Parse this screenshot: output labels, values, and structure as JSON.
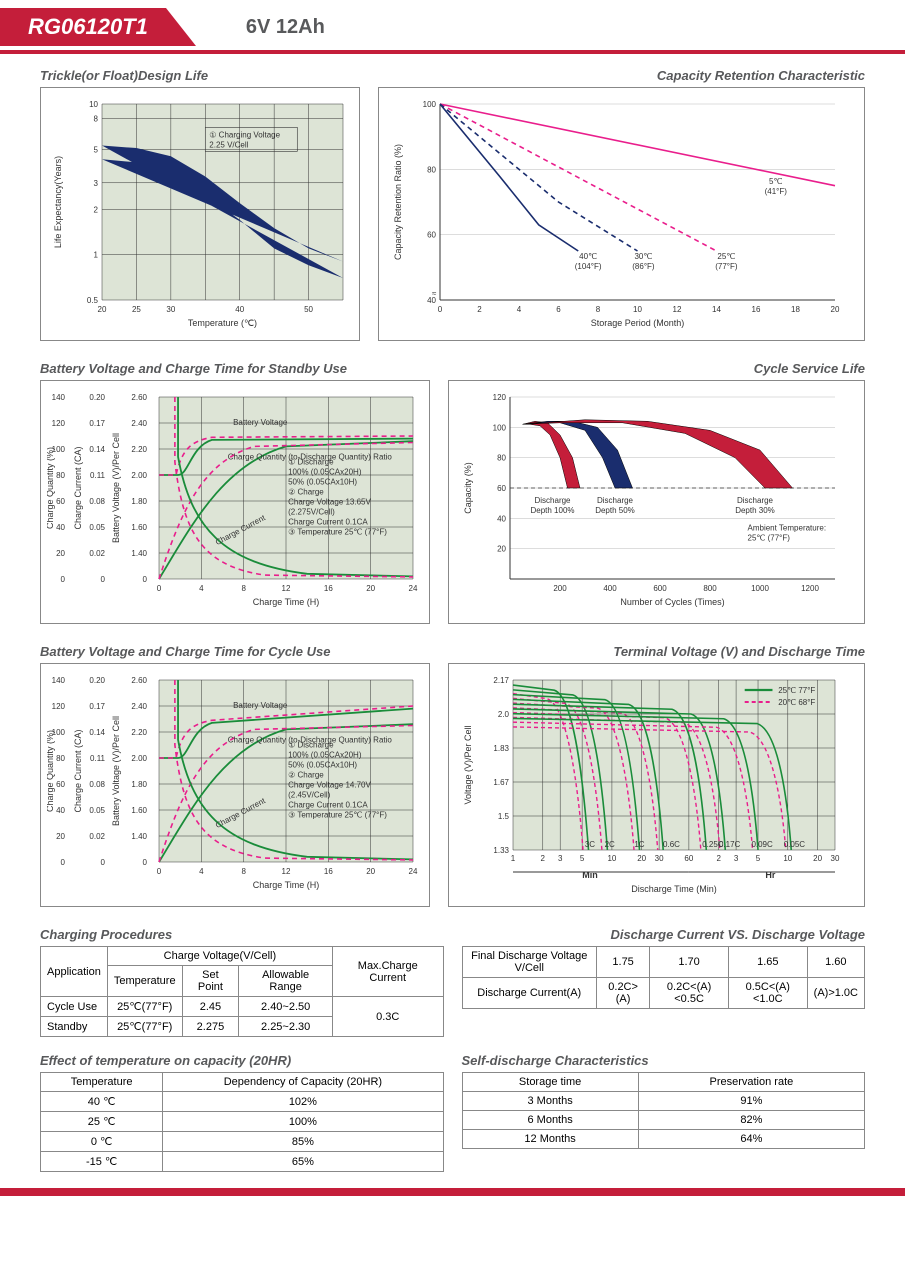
{
  "header": {
    "model": "RG06120T1",
    "spec": "6V  12Ah"
  },
  "chart_trickle": {
    "title": "Trickle(or Float)Design Life",
    "xlabel": "Temperature (℃)",
    "ylabel": "Life Expectancy(Years)",
    "xticks": [
      20,
      25,
      30,
      40,
      50
    ],
    "yticks_text": [
      "0.5",
      "1",
      "2",
      "3",
      "5",
      "8",
      "10"
    ],
    "legend": "① Charging Voltage 2.25 V/Cell",
    "band_color": "#1a2d6e",
    "bg": "#dde4d6",
    "band_upper": [
      [
        20,
        5.3
      ],
      [
        25,
        5.1
      ],
      [
        30,
        4.5
      ],
      [
        35,
        3.3
      ],
      [
        40,
        2.2
      ],
      [
        45,
        1.5
      ],
      [
        50,
        1.1
      ],
      [
        55,
        0.9
      ]
    ],
    "band_lower": [
      [
        20,
        4.3
      ],
      [
        25,
        4.1
      ],
      [
        30,
        3.5
      ],
      [
        35,
        2.5
      ],
      [
        40,
        1.7
      ],
      [
        45,
        1.1
      ],
      [
        50,
        0.85
      ],
      [
        55,
        0.7
      ]
    ]
  },
  "chart_retention": {
    "title": "Capacity Retention Characteristic",
    "xlabel": "Storage Period (Month)",
    "ylabel": "Capacity Retention Ratio (%)",
    "xticks": [
      0,
      2,
      4,
      6,
      8,
      10,
      12,
      14,
      16,
      18,
      20
    ],
    "yticks": [
      40,
      60,
      80,
      100
    ],
    "series": [
      {
        "label": "5℃ (41°F)",
        "label_xy": [
          17,
          78
        ],
        "color": "#e91e8c",
        "dash": false,
        "pts": [
          [
            0,
            100
          ],
          [
            20,
            75
          ]
        ]
      },
      {
        "label": "25℃ (77°F)",
        "label_xy": [
          14.5,
          55
        ],
        "color": "#e91e8c",
        "dash": true,
        "pts": [
          [
            0,
            100
          ],
          [
            14,
            55
          ]
        ]
      },
      {
        "label": "30℃ (86°F)",
        "label_xy": [
          10.3,
          55
        ],
        "color": "#1a2d6e",
        "dash": true,
        "pts": [
          [
            0,
            100
          ],
          [
            6,
            70
          ],
          [
            10,
            55
          ]
        ]
      },
      {
        "label": "40℃ (104°F)",
        "label_xy": [
          7.5,
          55
        ],
        "color": "#1a2d6e",
        "dash": false,
        "pts": [
          [
            0,
            100
          ],
          [
            3,
            78
          ],
          [
            5,
            63
          ],
          [
            7,
            55
          ]
        ]
      }
    ]
  },
  "chart_standby": {
    "title": "Battery Voltage and Charge Time for Standby Use",
    "xlabel": "Charge Time (H)",
    "xticks": [
      0,
      4,
      8,
      12,
      16,
      20,
      24
    ],
    "y1": "Charge Quantity (%)",
    "y1_ticks": [
      0,
      20,
      40,
      60,
      80,
      100,
      120,
      140
    ],
    "y2": "Charge Current (CA)",
    "y2_ticks": [
      "0",
      "0.02",
      "0.05",
      "0.08",
      "0.11",
      "0.14",
      "0.17",
      "0.20"
    ],
    "y3": "Battery Voltage (V)/Per Cell",
    "y3_ticks": [
      "0",
      "1.40",
      "1.60",
      "1.80",
      "2.00",
      "2.20",
      "2.40",
      "2.60"
    ],
    "notes": [
      "① Discharge",
      "   100% (0.05CAx20H)",
      "   50% (0.05CAx10H)",
      "② Charge",
      "   Charge Voltage 13.65V",
      "   (2.275V/Cell)",
      "   Charge Current 0.1CA",
      "③ Temperature 25℃ (77°F)"
    ],
    "lbl_bv": "Battery Voltage",
    "lbl_cq": "Charge Quantity (to-Discharge Quantity) Ratio",
    "lbl_cc": "Charge Current",
    "green": "#1a8c3a",
    "pink": "#e91e8c",
    "bg": "#dde4d6"
  },
  "chart_cycle_life": {
    "title": "Cycle Service Life",
    "xlabel": "Number of Cycles (Times)",
    "ylabel": "Capacity (%)",
    "xticks": [
      200,
      400,
      600,
      800,
      1000,
      1200
    ],
    "yticks": [
      20,
      40,
      60,
      80,
      100,
      120
    ],
    "ambient": "Ambient Temperature: 25℃  (77°F)",
    "wedges": [
      {
        "label": "Discharge Depth 100%",
        "color": "#c41e3a",
        "outer": [
          [
            50,
            102
          ],
          [
            100,
            104
          ],
          [
            150,
            103
          ],
          [
            200,
            95
          ],
          [
            250,
            80
          ],
          [
            280,
            60
          ]
        ],
        "inner": [
          [
            230,
            60
          ],
          [
            200,
            80
          ],
          [
            160,
            95
          ],
          [
            120,
            101
          ],
          [
            80,
            102
          ],
          [
            50,
            102
          ]
        ]
      },
      {
        "label": "Discharge Depth 50%",
        "color": "#1a2d6e",
        "outer": [
          [
            50,
            102
          ],
          [
            150,
            104
          ],
          [
            250,
            104
          ],
          [
            350,
            100
          ],
          [
            430,
            85
          ],
          [
            490,
            60
          ]
        ],
        "inner": [
          [
            420,
            60
          ],
          [
            370,
            80
          ],
          [
            300,
            98
          ],
          [
            200,
            103
          ],
          [
            100,
            103
          ],
          [
            50,
            102
          ]
        ]
      },
      {
        "label": "Discharge Depth 30%",
        "color": "#c41e3a",
        "outer": [
          [
            50,
            102
          ],
          [
            300,
            105
          ],
          [
            550,
            104
          ],
          [
            800,
            98
          ],
          [
            1000,
            85
          ],
          [
            1130,
            60
          ]
        ],
        "inner": [
          [
            1020,
            60
          ],
          [
            900,
            80
          ],
          [
            700,
            96
          ],
          [
            450,
            103
          ],
          [
            200,
            103
          ],
          [
            50,
            102
          ]
        ]
      }
    ]
  },
  "chart_cycle_charge": {
    "title": "Battery Voltage and Charge Time for Cycle Use",
    "notes": [
      "① Discharge",
      "   100% (0.05CAx20H)",
      "   50% (0.05CAx10H)",
      "② Charge",
      "   Charge Voltage 14.70V",
      "   (2.45V/Cell)",
      "   Charge Current 0.1CA",
      "③ Temperature 25℃ (77°F)"
    ]
  },
  "chart_terminal": {
    "title": "Terminal Voltage (V) and Discharge Time",
    "xlabel": "Discharge Time (Min)",
    "ylabel": "Voltage (V)/Per Cell",
    "yticks_text": [
      "1.33",
      "1.5",
      "1.67",
      "1.83",
      "2.0",
      "2.17"
    ],
    "legend25": "25℃ 77°F",
    "legend20": "20℃ 68°F",
    "green": "#1a8c3a",
    "pink": "#e91e8c",
    "x_minor": "Min",
    "x_major": "Hr",
    "curve_labels": [
      "3C",
      "2C",
      "1C",
      "0.6C",
      "0.25C",
      "0.17C",
      "0.09C",
      "0.05C"
    ]
  },
  "table_charging": {
    "title": "Charging Procedures",
    "head_app": "Application",
    "head_group": "Charge Voltage(V/Cell)",
    "head_temp": "Temperature",
    "head_set": "Set Point",
    "head_range": "Allowable Range",
    "head_max": "Max.Charge Current",
    "rows": [
      {
        "app": "Cycle Use",
        "temp": "25℃(77°F)",
        "set": "2.45",
        "range": "2.40~2.50"
      },
      {
        "app": "Standby",
        "temp": "25℃(77°F)",
        "set": "2.275",
        "range": "2.25~2.30"
      }
    ],
    "max": "0.3C"
  },
  "table_discharge": {
    "title": "Discharge Current VS. Discharge Voltage",
    "row1_label": "Final Discharge Voltage V/Cell",
    "row1": [
      "1.75",
      "1.70",
      "1.65",
      "1.60"
    ],
    "row2_label": "Discharge Current(A)",
    "row2": [
      "0.2C>(A)",
      "0.2C<(A)<0.5C",
      "0.5C<(A)<1.0C",
      "(A)>1.0C"
    ]
  },
  "table_tempcap": {
    "title": "Effect of temperature on capacity (20HR)",
    "head1": "Temperature",
    "head2": "Dependency of Capacity (20HR)",
    "rows": [
      [
        "40 ℃",
        "102%"
      ],
      [
        "25 ℃",
        "100%"
      ],
      [
        "0 ℃",
        "85%"
      ],
      [
        "-15 ℃",
        "65%"
      ]
    ]
  },
  "table_selfdis": {
    "title": "Self-discharge Characteristics",
    "head1": "Storage time",
    "head2": "Preservation rate",
    "rows": [
      [
        "3 Months",
        "91%"
      ],
      [
        "6 Months",
        "82%"
      ],
      [
        "12 Months",
        "64%"
      ]
    ]
  }
}
